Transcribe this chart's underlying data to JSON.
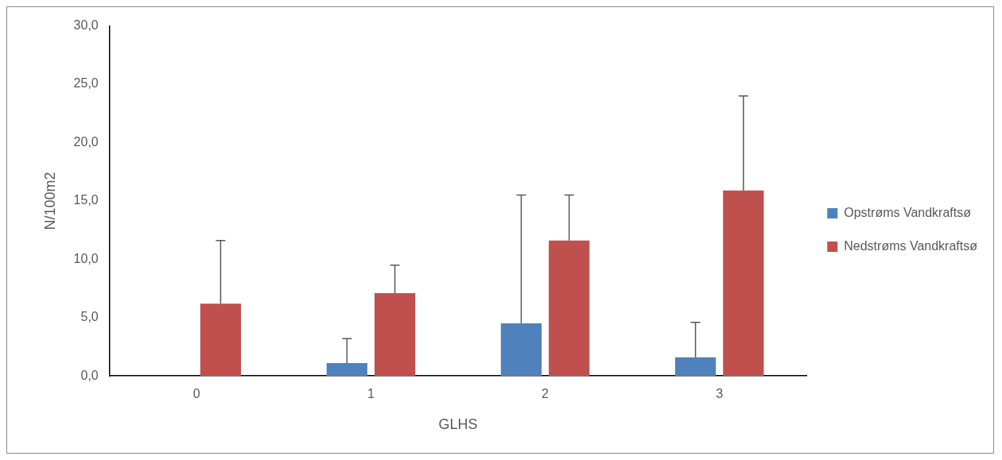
{
  "chart_data": {
    "type": "bar",
    "xlabel": "GLHS",
    "ylabel": "N/100m2",
    "categories": [
      "0",
      "1",
      "2",
      "3"
    ],
    "series": [
      {
        "name": "Opstrøms Vandkraftsø",
        "color": "#4f81bd",
        "values": [
          0,
          1.1,
          4.5,
          1.6
        ],
        "errors": [
          null,
          [
            1.1,
            3.2
          ],
          [
            4.5,
            15.5
          ],
          [
            1.6,
            4.6
          ]
        ]
      },
      {
        "name": "Nedstrøms Vandkraftsø",
        "color": "#c0504d",
        "values": [
          6.2,
          7.1,
          11.6,
          15.9
        ],
        "errors": [
          [
            6.2,
            11.6
          ],
          [
            7.1,
            9.5
          ],
          [
            11.6,
            15.5
          ],
          [
            15.9,
            24.0
          ]
        ]
      }
    ],
    "ylim": [
      0,
      30
    ],
    "yticks": [
      {
        "value": 0,
        "label": "0,0"
      },
      {
        "value": 5,
        "label": "5,0"
      },
      {
        "value": 10,
        "label": "10,0"
      },
      {
        "value": 15,
        "label": "15,0"
      },
      {
        "value": 20,
        "label": "20,0"
      },
      {
        "value": 25,
        "label": "25,0"
      },
      {
        "value": 30,
        "label": "30,0"
      }
    ],
    "grid": false,
    "legend": "right"
  }
}
